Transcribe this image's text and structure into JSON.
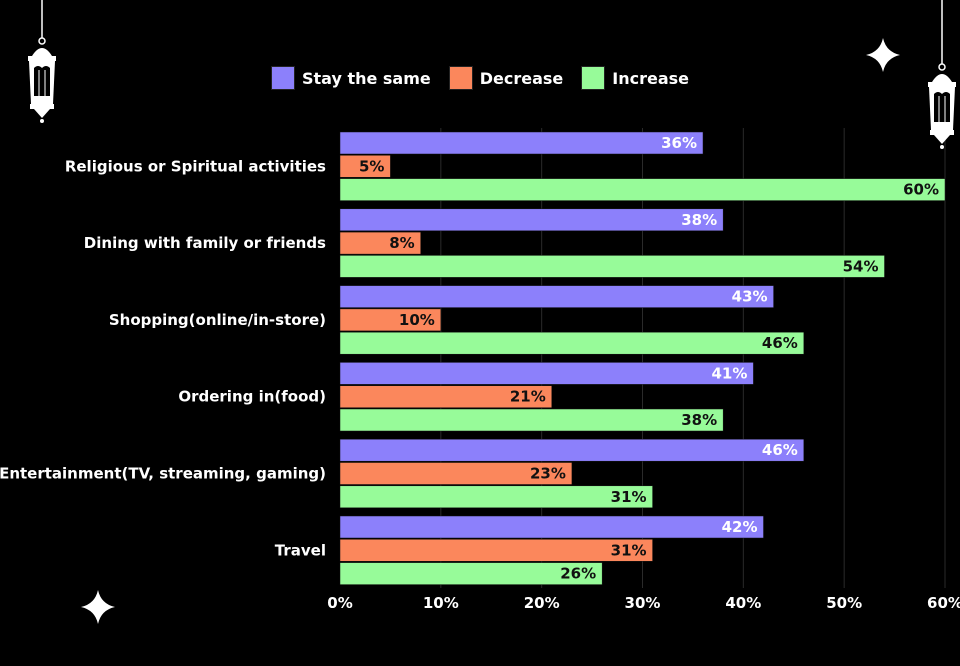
{
  "colors": {
    "background": "#000000",
    "stay": "#8c80fb",
    "decrease": "#fb875c",
    "increase": "#97fb99",
    "grid": "#2a2a2a"
  },
  "legend": [
    {
      "label": "Stay the same",
      "color": "#8c80fb"
    },
    {
      "label": "Decrease",
      "color": "#fb875c"
    },
    {
      "label": "Increase",
      "color": "#97fb99"
    }
  ],
  "decorations": [
    "lantern-icon",
    "lantern-icon",
    "sparkle-icon",
    "sparkle-icon"
  ],
  "chart_data": {
    "type": "bar",
    "orientation": "horizontal",
    "categories": [
      "Religious or Spiritual activities",
      "Dining with family or friends",
      "Shopping(online/in-store)",
      "Ordering in(food)",
      "Entertainment(TV, streaming, gaming)",
      "Travel"
    ],
    "series": [
      {
        "name": "Stay the same",
        "values": [
          36,
          38,
          43,
          41,
          46,
          42
        ],
        "color": "#8c80fb"
      },
      {
        "name": "Decrease",
        "values": [
          5,
          8,
          10,
          21,
          23,
          31
        ],
        "color": "#fb875c"
      },
      {
        "name": "Increase",
        "values": [
          60,
          54,
          46,
          38,
          31,
          26
        ],
        "color": "#97fb99"
      }
    ],
    "xlim": [
      0,
      60
    ],
    "ticks": [
      "0%",
      "10%",
      "20%",
      "30%",
      "40%",
      "50%",
      "60%"
    ],
    "value_suffix": "%",
    "legend_position": "top",
    "grid": true
  }
}
